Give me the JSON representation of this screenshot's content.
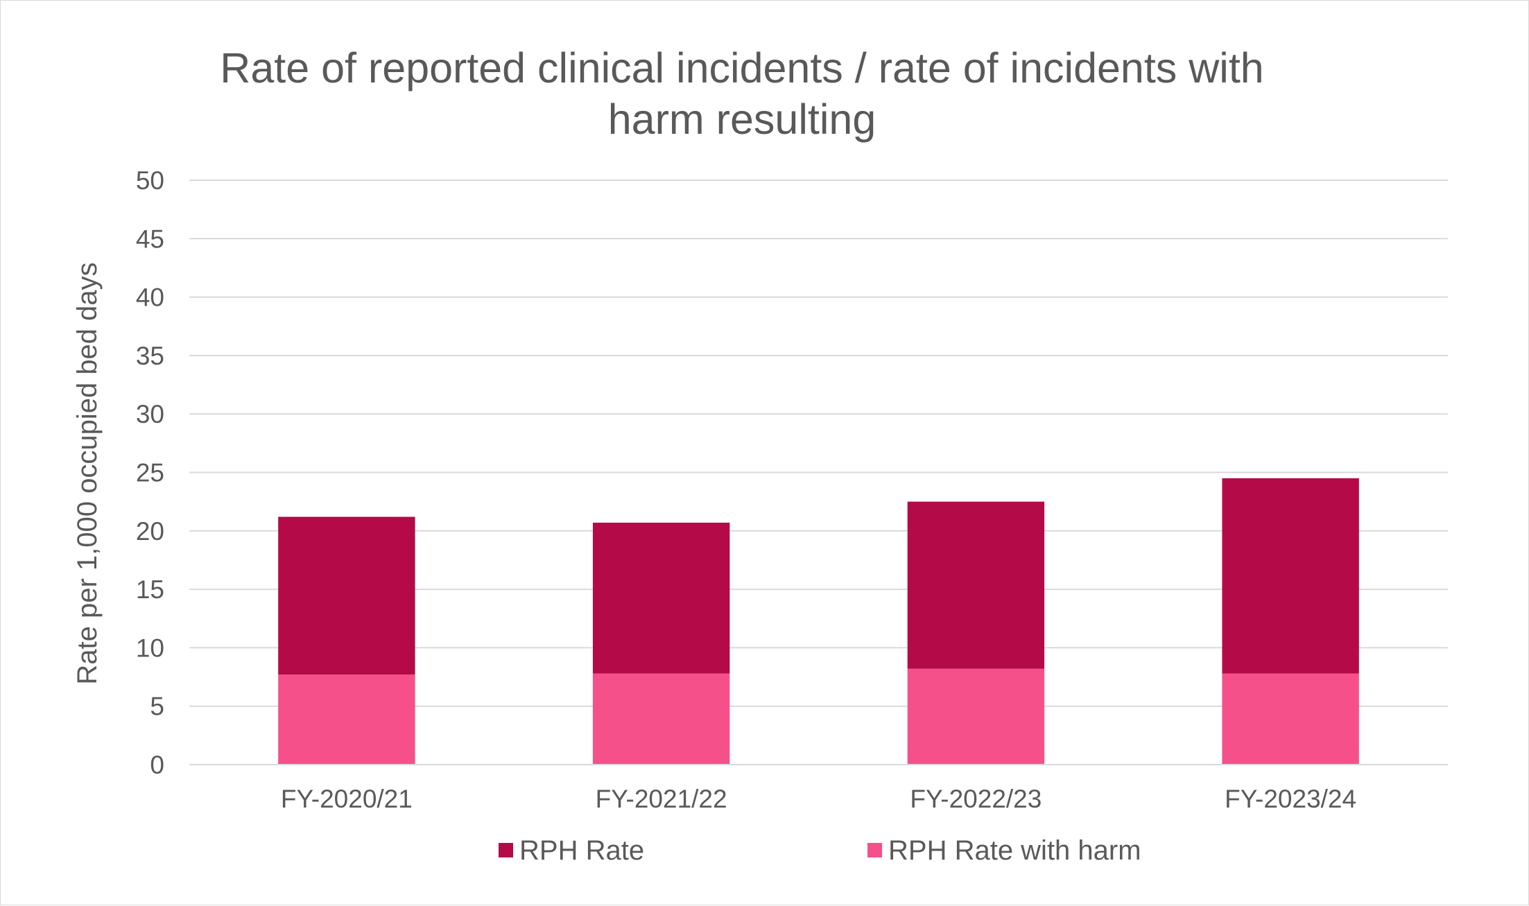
{
  "chart_data": {
    "type": "bar",
    "stacked": true,
    "title_lines": [
      "Rate of reported clinical incidents / rate of incidents with",
      "harm resulting"
    ],
    "xlabel": "",
    "ylabel": "Rate per 1,000 occupied bed days",
    "ylim": [
      0,
      50
    ],
    "yticks": [
      "0",
      "5",
      "10",
      "15",
      "20",
      "25",
      "30",
      "35",
      "40",
      "45",
      "50"
    ],
    "categories": [
      "FY-2020/21",
      "FY-2021/22",
      "FY-2022/23",
      "FY-2023/24"
    ],
    "grid": true,
    "legend_position": "bottom",
    "series": [
      {
        "name": "RPH Rate with harm",
        "color": "#f5508a",
        "values": [
          7.7,
          7.8,
          8.2,
          7.8
        ]
      },
      {
        "name": "RPH Rate",
        "color": "#b50a48",
        "values": [
          13.5,
          12.9,
          14.3,
          16.7
        ]
      }
    ],
    "legend_order": [
      "RPH Rate",
      "RPH Rate with harm"
    ]
  }
}
